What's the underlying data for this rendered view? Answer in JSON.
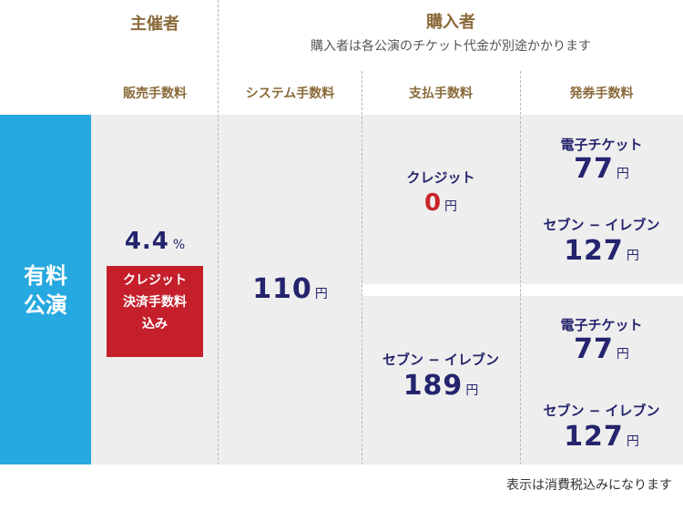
{
  "headers": {
    "organizer": "主催者",
    "purchaser": "購入者",
    "purchaser_note": "購入者は各公演のチケット代金が別途かかります"
  },
  "columns": {
    "sales_fee": "販売手数料",
    "system_fee": "システム手数料",
    "payment_fee": "支払手数料",
    "issuing_fee": "発券手数料"
  },
  "row": {
    "label_line1": "有料",
    "label_line2": "公演"
  },
  "sales": {
    "rate": "4.4",
    "rate_unit": "%",
    "note_line1": "クレジット",
    "note_line2": "決済手数料",
    "note_line3": "込み"
  },
  "system": {
    "amount": "110",
    "unit": "円"
  },
  "payment": {
    "credit_label": "クレジット",
    "credit_amount": "0",
    "seven_label": "セブン − イレブン",
    "seven_amount": "189",
    "unit": "円"
  },
  "issuing": {
    "top": {
      "eticket_label": "電子チケット",
      "eticket_amount": "77",
      "seven_label": "セブン − イレブン",
      "seven_amount": "127"
    },
    "bottom": {
      "eticket_label": "電子チケット",
      "eticket_amount": "77",
      "seven_label": "セブン − イレブン",
      "seven_amount": "127"
    },
    "unit": "円"
  },
  "footnote": "表示は消費税込みになります",
  "colors": {
    "header_brown": "#8a6a3a",
    "navy": "#24246e",
    "red": "#c9252b",
    "row_blue": "#26a8e0",
    "panel_grey": "#eeeeee"
  }
}
